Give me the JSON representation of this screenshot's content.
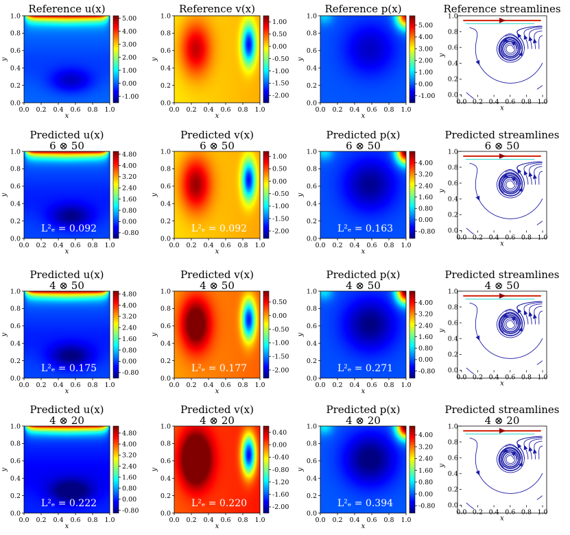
{
  "chart_data": {
    "type": "heatmap",
    "layout": "grid of 4 rows x 4 columns",
    "x_ticks": [
      "0.0",
      "0.2",
      "0.4",
      "0.6",
      "0.8",
      "1.0"
    ],
    "y_ticks": [
      "0.0",
      "0.2",
      "0.4",
      "0.6",
      "0.8",
      "1.0"
    ],
    "xlabel": "x",
    "ylabel": "y",
    "xlim": [
      0,
      1
    ],
    "ylim": [
      0,
      1
    ],
    "rows": [
      {
        "panels": [
          {
            "kind": "u",
            "title": "Reference u(x)",
            "subtitle": "",
            "error": "",
            "colorbar": [
              "5.00",
              "4.00",
              "3.00",
              "2.00",
              "1.00",
              "0.00",
              "-1.00"
            ],
            "cmin": -1.5,
            "cmax": 5.2
          },
          {
            "kind": "v",
            "title": "Reference v(x)",
            "subtitle": "",
            "error": "",
            "colorbar": [
              "1.00",
              "0.50",
              "0.00",
              "-0.50",
              "-1.00",
              "-1.50",
              "-2.00"
            ],
            "cmin": -2.3,
            "cmax": 1.25
          },
          {
            "kind": "p",
            "title": "Reference p(x)",
            "subtitle": "",
            "error": "",
            "colorbar": [
              "5.00",
              "4.00",
              "3.00",
              "2.00",
              "1.00",
              "0.00",
              "-1.00"
            ],
            "cmin": -1.6,
            "cmax": 5.8
          },
          {
            "kind": "s",
            "title": "Reference streamlines",
            "subtitle": "",
            "error": ""
          }
        ]
      },
      {
        "panels": [
          {
            "kind": "u",
            "title": "Predicted u(x)",
            "subtitle": "6 ⊗ 50",
            "error": "L²ₑ = 0.092",
            "colorbar": [
              "4.80",
              "4.00",
              "3.20",
              "2.40",
              "1.60",
              "0.80",
              "0.00",
              "-0.80"
            ],
            "cmin": -1.2,
            "cmax": 5.0
          },
          {
            "kind": "v",
            "title": "Predicted v(x)",
            "subtitle": "6 ⊗ 50",
            "error": "L²ₑ = 0.092",
            "colorbar": [
              "1.00",
              "0.50",
              "0.00",
              "-0.50",
              "-1.00",
              "-1.50",
              "-2.00"
            ],
            "cmin": -2.3,
            "cmax": 1.2
          },
          {
            "kind": "p",
            "title": "Predicted p(x)",
            "subtitle": "6 ⊗ 50",
            "error": "L²ₑ = 0.163",
            "colorbar": [
              "4.00",
              "3.20",
              "2.40",
              "1.60",
              "0.80",
              "0.00",
              "-0.80"
            ],
            "cmin": -1.3,
            "cmax": 4.8
          },
          {
            "kind": "s",
            "title": "Predicted streamlines",
            "subtitle": "6 ⊗ 50",
            "error": ""
          }
        ]
      },
      {
        "panels": [
          {
            "kind": "u",
            "title": "Predicted u(x)",
            "subtitle": "4 ⊗ 50",
            "error": "L²ₑ = 0.175",
            "colorbar": [
              "4.80",
              "4.00",
              "3.20",
              "2.40",
              "1.60",
              "0.80",
              "0.00",
              "-0.80"
            ],
            "cmin": -1.2,
            "cmax": 5.0
          },
          {
            "kind": "v",
            "title": "Predicted v(x)",
            "subtitle": "4 ⊗ 50",
            "error": "L²ₑ = 0.177",
            "colorbar": [
              "0.50",
              "0.00",
              "-0.50",
              "-1.00",
              "-1.50",
              "-2.00"
            ],
            "cmin": -2.3,
            "cmax": 0.9
          },
          {
            "kind": "p",
            "title": "Predicted p(x)",
            "subtitle": "4 ⊗ 50",
            "error": "L²ₑ = 0.271",
            "colorbar": [
              "4.00",
              "3.20",
              "2.40",
              "1.60",
              "0.80",
              "0.00",
              "-0.80"
            ],
            "cmin": -1.3,
            "cmax": 4.8
          },
          {
            "kind": "s",
            "title": "Predicted streamlines",
            "subtitle": "4 ⊗ 50",
            "error": ""
          }
        ]
      },
      {
        "panels": [
          {
            "kind": "u",
            "title": "Predicted u(x)",
            "subtitle": "4 ⊗ 20",
            "error": "L²ₑ = 0.222",
            "colorbar": [
              "4.80",
              "4.00",
              "3.20",
              "2.40",
              "1.60",
              "0.80",
              "0.00",
              "-0.80"
            ],
            "cmin": -1.0,
            "cmax": 5.3
          },
          {
            "kind": "v",
            "title": "Predicted v(x)",
            "subtitle": "4 ⊗ 20",
            "error": "L²ₑ = 0.220",
            "colorbar": [
              "0.40",
              "0.00",
              "-0.40",
              "-0.80",
              "-1.20",
              "-1.60",
              "-2.00"
            ],
            "cmin": -2.2,
            "cmax": 0.6
          },
          {
            "kind": "p",
            "title": "Predicted p(x)",
            "subtitle": "4 ⊗ 20",
            "error": "L²ₑ = 0.394",
            "colorbar": [
              "4.00",
              "3.20",
              "2.40",
              "1.60",
              "0.80",
              "0.00",
              "-0.80"
            ],
            "cmin": -1.3,
            "cmax": 4.6
          },
          {
            "kind": "s",
            "title": "Predicted streamlines",
            "subtitle": "4 ⊗ 20",
            "error": ""
          }
        ]
      }
    ]
  }
}
